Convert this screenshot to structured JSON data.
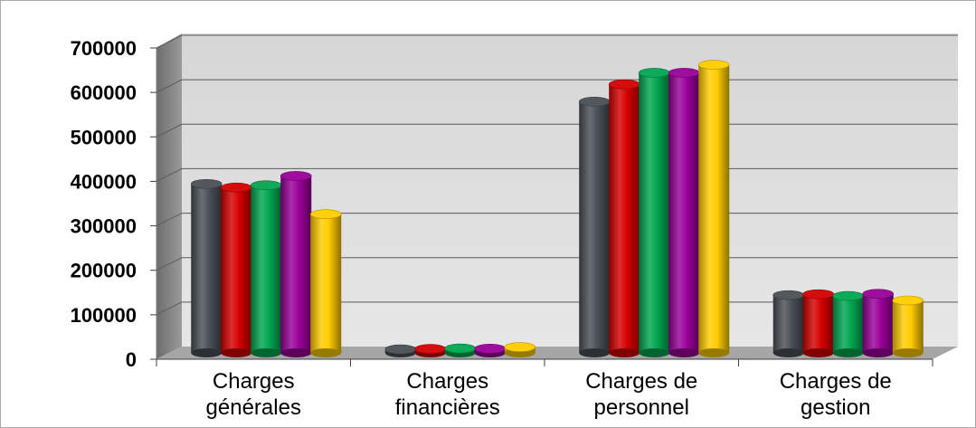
{
  "chart_data": {
    "type": "bar",
    "title": "",
    "xlabel": "",
    "ylabel": "",
    "ylim": [
      0,
      700000
    ],
    "yticks": [
      "0",
      "100000",
      "200000",
      "300000",
      "400000",
      "500000",
      "600000",
      "700000"
    ],
    "categories": [
      [
        "Charges",
        "générales"
      ],
      [
        "Charges",
        "financières"
      ],
      [
        "Charges de",
        "personnel"
      ],
      [
        "Charges de",
        "gestion"
      ]
    ],
    "series": [
      {
        "color": "#4a4f57",
        "values": [
          380000,
          8000,
          565000,
          130000
        ]
      },
      {
        "color": "#d40000",
        "values": [
          372000,
          9000,
          604000,
          132000
        ]
      },
      {
        "color": "#00a650",
        "values": [
          377000,
          10000,
          630000,
          128000
        ]
      },
      {
        "color": "#990099",
        "values": [
          398000,
          9500,
          630000,
          133000
        ]
      },
      {
        "color": "#ffcc00",
        "values": [
          312000,
          13000,
          648000,
          118000
        ]
      }
    ],
    "grid": true,
    "legend": "none",
    "style": "3d-cylinder"
  }
}
